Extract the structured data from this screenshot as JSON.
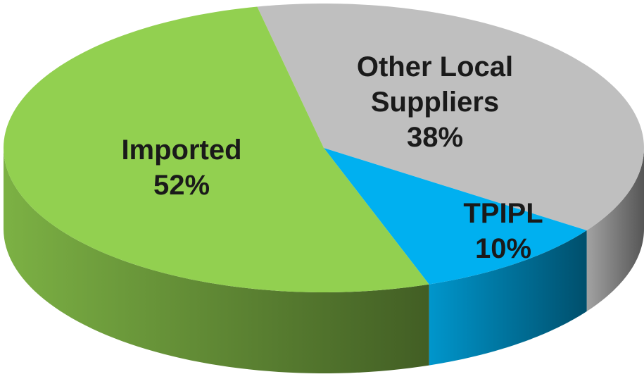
{
  "chart_data": {
    "type": "pie",
    "categories": [
      "Other Local Suppliers",
      "TPIPL",
      "Imported"
    ],
    "values": [
      38,
      10,
      52
    ],
    "value_labels": [
      "38%",
      "10%",
      "52%"
    ],
    "colors": [
      "#bfbfbf",
      "#00b0f0",
      "#92d050"
    ]
  }
}
